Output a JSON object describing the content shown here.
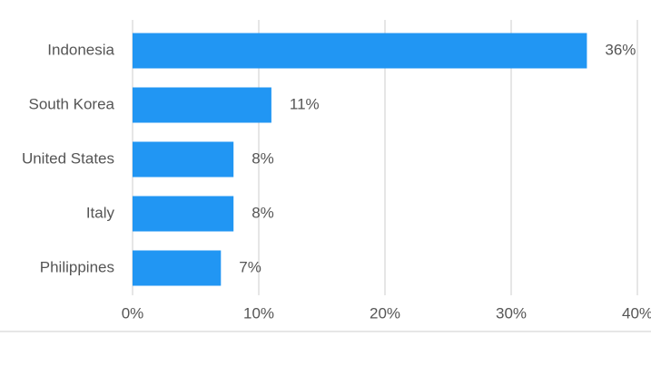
{
  "chart_data": {
    "type": "hbar",
    "categories": [
      "Indonesia",
      "South Korea",
      "United States",
      "Italy",
      "Philippines"
    ],
    "values": [
      36,
      11,
      8,
      8,
      7
    ],
    "value_labels": [
      "36%",
      "11%",
      "8%",
      "8%",
      "7%"
    ],
    "color": "#2196f3",
    "xlim": [
      0,
      40
    ],
    "xticks": [
      {
        "value": 0,
        "label": "0%"
      },
      {
        "value": 10,
        "label": "10%"
      },
      {
        "value": 20,
        "label": "20%"
      },
      {
        "value": 30,
        "label": "30%"
      },
      {
        "value": 40,
        "label": "40%"
      }
    ],
    "grid": true
  }
}
